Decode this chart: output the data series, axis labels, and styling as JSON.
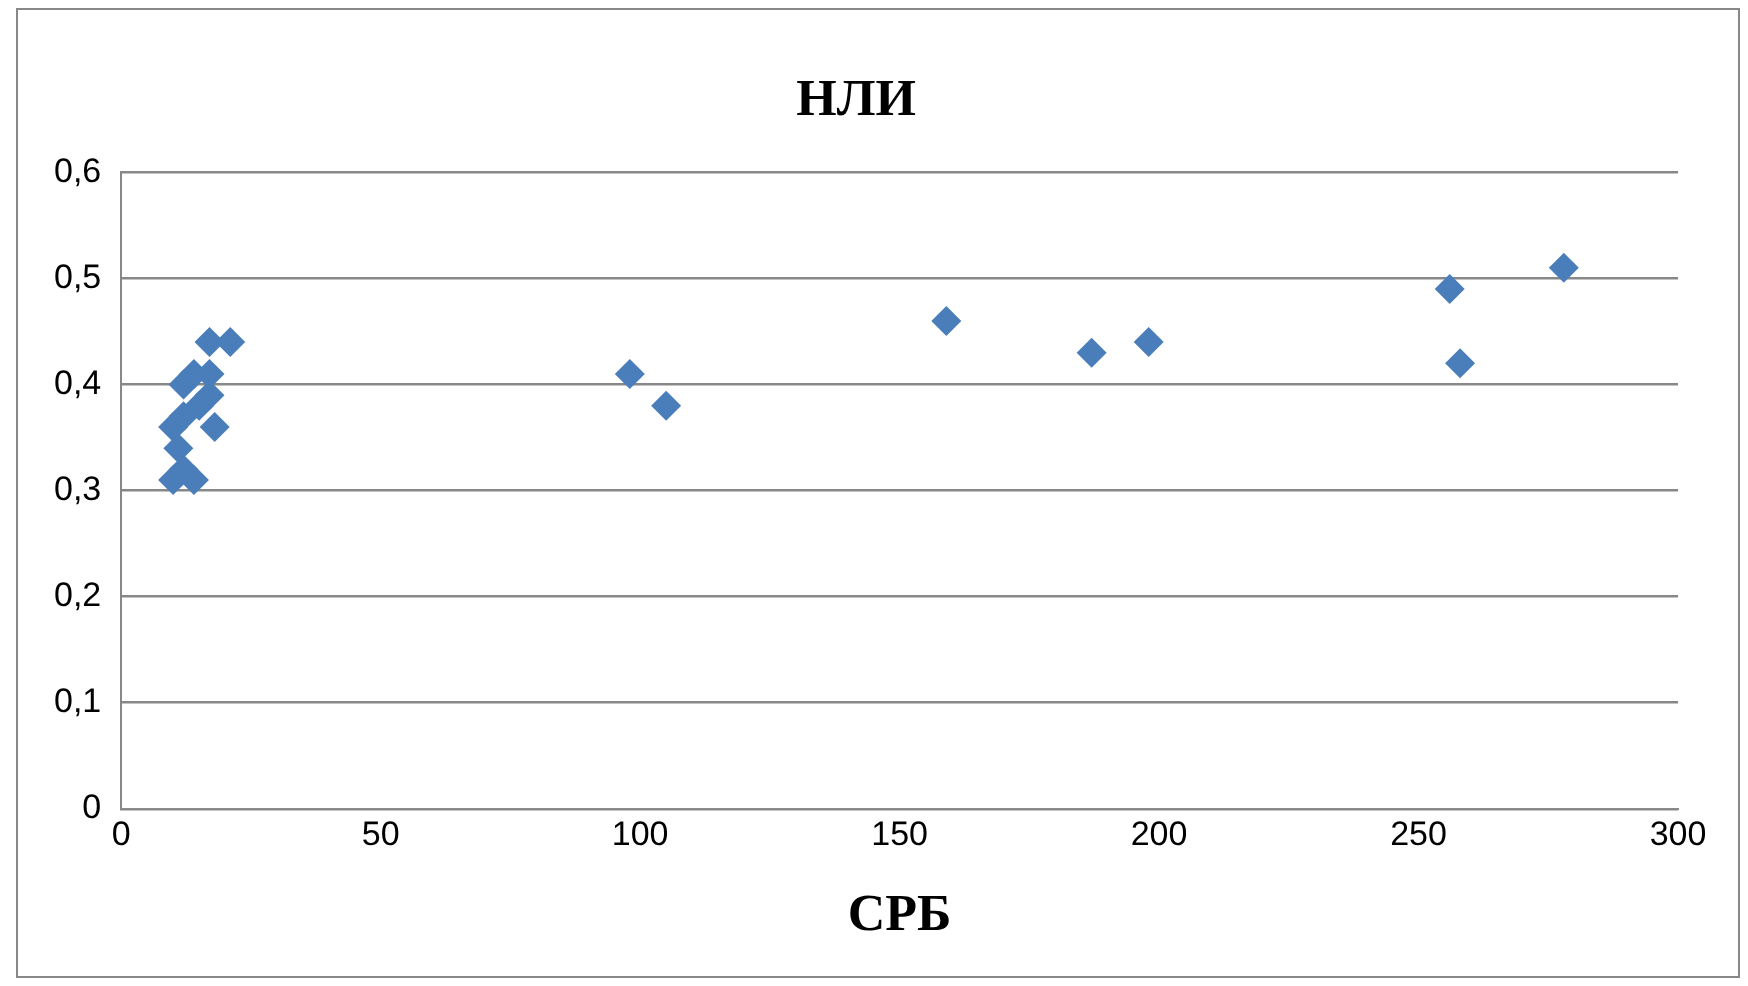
{
  "chart_data": {
    "type": "scatter",
    "title": "НЛИ",
    "xlabel": "СРБ",
    "x": [
      10,
      10,
      11,
      12,
      12,
      12,
      14,
      14,
      15,
      17,
      17,
      17,
      18,
      21,
      98,
      105,
      159,
      187,
      198,
      256,
      258,
      278
    ],
    "series": [
      {
        "color": "#4a7ebb",
        "values": [
          0.36,
          0.31,
          0.34,
          0.4,
          0.37,
          0.32,
          0.41,
          0.31,
          0.38,
          0.44,
          0.41,
          0.39,
          0.36,
          0.44,
          0.41,
          0.38,
          0.46,
          0.43,
          0.44,
          0.49,
          0.42,
          0.51
        ]
      }
    ],
    "xlim": [
      0,
      300
    ],
    "xticks": [
      0,
      50,
      100,
      150,
      200,
      250,
      300
    ],
    "ylim": [
      0,
      0.6
    ],
    "yticks": [
      {
        "value": 0,
        "label": "0"
      },
      {
        "value": 0.1,
        "label": "0,1"
      },
      {
        "value": 0.2,
        "label": "0,2"
      },
      {
        "value": 0.3,
        "label": "0,3"
      },
      {
        "value": 0.4,
        "label": "0,4"
      },
      {
        "value": 0.5,
        "label": "0,5"
      },
      {
        "value": 0.6,
        "label": "0,6"
      }
    ],
    "grid": "y",
    "legend": false,
    "marker": "diamond"
  }
}
